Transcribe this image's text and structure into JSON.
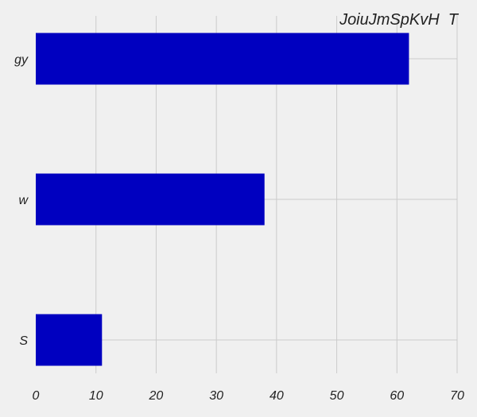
{
  "chart_data": {
    "type": "bar",
    "orientation": "horizontal",
    "title": "JoiuJmSpKvH  T",
    "xlabel": "",
    "ylabel": "",
    "categories": [
      "gy",
      "w",
      "S"
    ],
    "values": [
      62,
      38,
      11
    ],
    "xlim": [
      0,
      70
    ],
    "xticks": [
      "0",
      "10",
      "20",
      "30",
      "40",
      "50",
      "60",
      "70"
    ],
    "grid": true,
    "colors": {
      "bar": "#0000c0",
      "background": "#f0f0f0",
      "grid": "#cbcbcb",
      "text": "#222222"
    }
  }
}
